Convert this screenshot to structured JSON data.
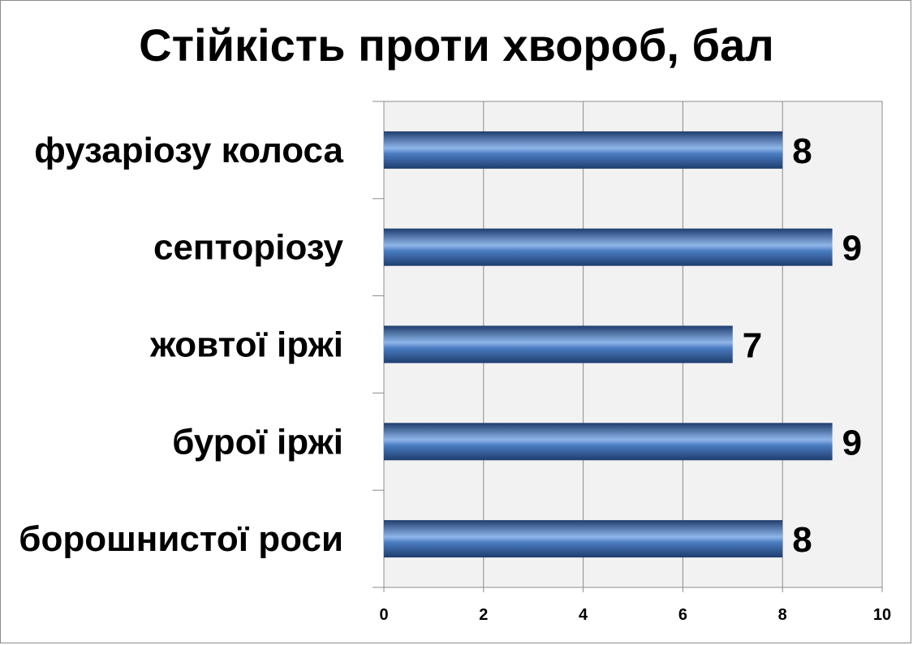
{
  "chart_data": {
    "type": "bar",
    "orientation": "horizontal",
    "title": "Стійкість проти хвороб, бал",
    "categories": [
      "фузаріозу колоса",
      "септоріозу",
      "жовтої іржі",
      "бурої іржі",
      "борошнистої роси"
    ],
    "values": [
      8,
      9,
      7,
      9,
      8
    ],
    "xlim": [
      0,
      10
    ],
    "xticks": [
      0,
      2,
      4,
      6,
      8,
      10
    ],
    "xlabel": "",
    "ylabel": "",
    "grid": true,
    "legend": "none",
    "data_labels": true,
    "colors": {
      "bar_dark": "#1f3d6e",
      "bar_light": "#8fb6ea",
      "bar_mid": "#4a7cc1",
      "plot_bg": "#f2f2f2",
      "grid": "#8c8c8c"
    }
  }
}
